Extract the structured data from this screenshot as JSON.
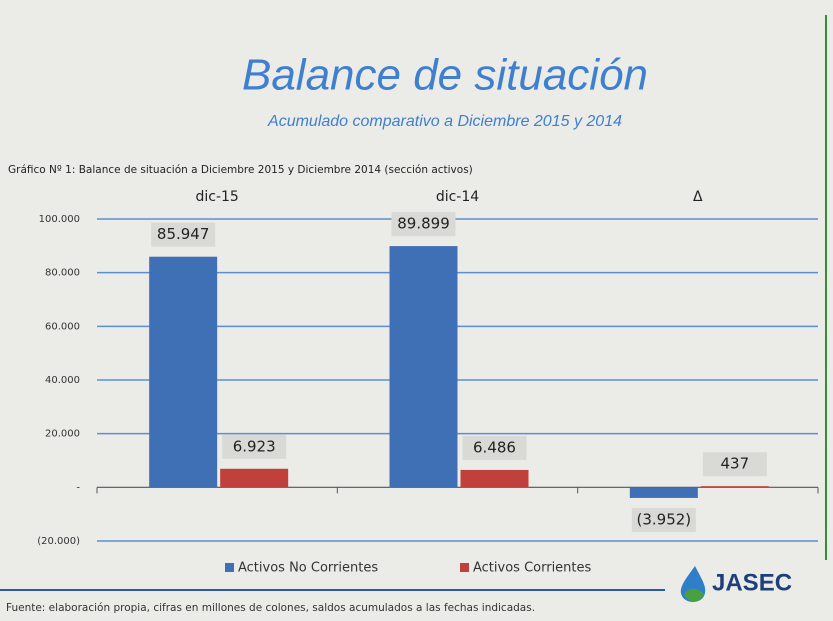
{
  "chart_data": {
    "type": "bar",
    "title": "Balance de situación",
    "subtitle": "Acumulado comparativo a Diciembre 2015 y 2014",
    "caption": "Gráfico Nº 1: Balance de situación a Diciembre 2015 y Diciembre 2014 (sección activos)",
    "source": "Fuente: elaboración propia, cifras en millones de colones, saldos acumulados a las fechas indicadas.",
    "logo": "JASEC",
    "categories": [
      "dic-15",
      "dic-14",
      "Δ"
    ],
    "series": [
      {
        "name": "Activos No Corrientes",
        "color": "#3f6fb5",
        "values": [
          85947,
          89899,
          -3952
        ],
        "value_labels": [
          "85.947",
          "89.899",
          "(3.952)"
        ]
      },
      {
        "name": "Activos Corrientes",
        "color": "#c0403c",
        "values": [
          6923,
          6486,
          437
        ],
        "value_labels": [
          "6.923",
          "6.486",
          "437"
        ]
      }
    ],
    "ylim": [
      -20000,
      100000
    ],
    "yticks": [
      {
        "value": -20000,
        "label": "(20.000)"
      },
      {
        "value": 0,
        "label": "-"
      },
      {
        "value": 20000,
        "label": "20.000"
      },
      {
        "value": 40000,
        "label": "40.000"
      },
      {
        "value": 60000,
        "label": "60.000"
      },
      {
        "value": 80000,
        "label": "80.000"
      },
      {
        "value": 100000,
        "label": "100.000"
      }
    ],
    "grid": true,
    "legend": "bottom"
  }
}
